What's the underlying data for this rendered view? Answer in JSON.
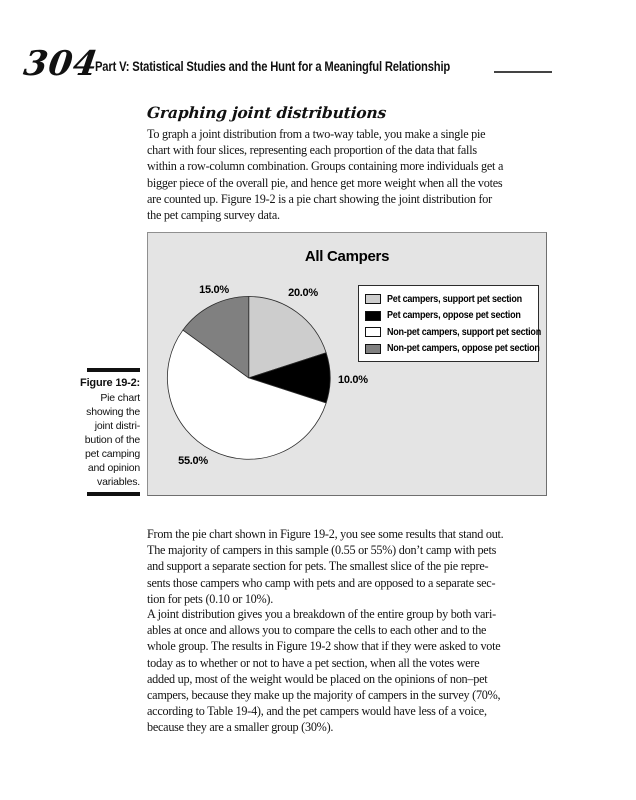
{
  "page": {
    "number": "304",
    "running_head": "Part V: Statistical Studies and the Hunt for a Meaningful Relationship"
  },
  "section": {
    "heading": "Graphing joint distributions",
    "para1": "To graph a joint distribution from a two-way table, you make a single pie\nchart with four slices, representing each proportion of the data that falls\nwithin a row-column combination. Groups containing more individuals get a\nbigger piece of the overall pie, and hence get more weight when all the votes\nare counted up. Figure 19-2 is a pie chart showing the joint distribution for\nthe pet camping survey data.",
    "para2": "From the pie chart shown in Figure 19-2, you see some results that stand out.\nThe majority of campers in this sample (0.55 or 55%) don’t camp with pets\nand support a separate section for pets. The smallest slice of the pie repre-\nsents those campers who camp with pets and are opposed to a separate sec-\ntion for pets (0.10 or 10%).",
    "para3": "A joint distribution gives you a breakdown of the entire group by both vari-\nables at once and allows you to compare the cells to each other and to the\nwhole group. The results in Figure 19-2 show that if they were asked to vote\ntoday as to whether or not to have a pet section, when all the votes were\nadded up, most of the weight would be placed on the opinions of non–pet\ncampers, because they make up the majority of campers in the survey (70%,\naccording to Table 19-4), and the pet campers would have less of a voice,\nbecause they are a smaller group (30%)."
  },
  "figure": {
    "caption_label": "Figure 19-2:",
    "caption_text": "Pie chart\nshowing the\njoint distri-\nbution of the\npet camping\nand opinion\nvariables."
  },
  "chart_data": {
    "type": "pie",
    "title": "All Campers",
    "slices": [
      {
        "label": "Pet campers, support pet section",
        "value": 20.0,
        "color": "#cdcdcd"
      },
      {
        "label": "Pet campers, oppose pet section",
        "value": 10.0,
        "color": "#000000"
      },
      {
        "label": "Non-pet campers, support pet section",
        "value": 55.0,
        "color": "#ffffff"
      },
      {
        "label": "Non-pet campers, oppose pet section",
        "value": 15.0,
        "color": "#808080"
      }
    ],
    "start_angle": "12 o'clock",
    "direction": "clockwise",
    "value_label_format": "XX.X%",
    "legend_position": "upper right",
    "panel_background": "#e4e4e4",
    "outline_color": "#2b2b2b"
  }
}
